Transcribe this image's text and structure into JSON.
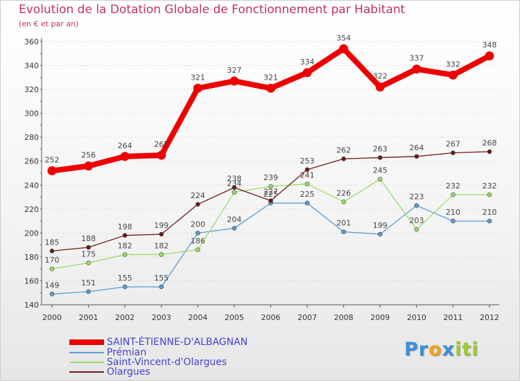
{
  "header": {
    "title": "Evolution de la Dotation Globale de Fonctionnement par Habitant",
    "subtitle": "(en € et par an)"
  },
  "chart_data": {
    "type": "line",
    "title": "Evolution de la Dotation Globale de Fonctionnement par Habitant",
    "subtitle": "(en € et par an)",
    "xlabel": "",
    "ylabel": "",
    "ylim": [
      140,
      360
    ],
    "yticks": [
      140,
      160,
      180,
      200,
      220,
      240,
      260,
      280,
      300,
      320,
      340,
      360
    ],
    "grid": "horizontal",
    "categories": [
      "2000",
      "2001",
      "2002",
      "2003",
      "2004",
      "2005",
      "2006",
      "2007",
      "2008",
      "2009",
      "2010",
      "2011",
      "2012"
    ],
    "series": [
      {
        "name": "SAINT-ÉTIENNE-D'ALBAGNAN",
        "color": "#ee0000",
        "values": [
          252,
          256,
          264,
          265,
          321,
          327,
          321,
          334,
          354,
          322,
          337,
          332,
          348
        ]
      },
      {
        "name": "Prémian",
        "color": "#5b9bd5",
        "values": [
          149,
          151,
          155,
          155,
          200,
          204,
          225,
          225,
          201,
          199,
          223,
          210,
          210
        ]
      },
      {
        "name": "Saint-Vincent-d'Olargues",
        "color": "#99dd66",
        "values": [
          170,
          175,
          182,
          182,
          186,
          234,
          239,
          241,
          226,
          245,
          203,
          232,
          232
        ]
      },
      {
        "name": "Olargues",
        "color": "#6b1a1a",
        "values": [
          185,
          188,
          198,
          199,
          224,
          238,
          227,
          253,
          262,
          263,
          264,
          267,
          268
        ]
      }
    ]
  },
  "logo": {
    "parts": [
      "Pr",
      "o",
      "x",
      "iti"
    ],
    "colors": [
      "#3a8fd8",
      "#f0a020",
      "#3a8fd8",
      "#99cc33"
    ]
  }
}
